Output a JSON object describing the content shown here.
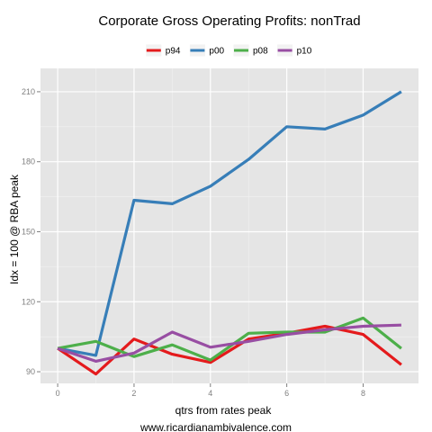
{
  "chart_data": {
    "type": "line",
    "title": "Corporate Gross Operating Profits: nonTrad",
    "xlabel": "qtrs from rates peak",
    "ylabel": "Idx = 100 @ RBA peak",
    "footer": "www.ricardianambivalence.com",
    "x": [
      0,
      1,
      2,
      3,
      4,
      5,
      6,
      7,
      8,
      9
    ],
    "xlim": [
      -0.45,
      9.45
    ],
    "ylim": [
      85,
      220
    ],
    "x_ticks": [
      0,
      2,
      4,
      6,
      8
    ],
    "y_ticks": [
      90,
      120,
      150,
      180,
      210
    ],
    "grid": true,
    "legend_position": "top",
    "series": [
      {
        "name": "p94",
        "color": "#e41a1c",
        "values": [
          100,
          89,
          104,
          97.5,
          94,
          104,
          106.5,
          109.5,
          106,
          93
        ]
      },
      {
        "name": "p00",
        "color": "#377eb8",
        "values": [
          100,
          97,
          163.5,
          162,
          169.5,
          181,
          195,
          194,
          200,
          210
        ]
      },
      {
        "name": "p08",
        "color": "#4daf4a",
        "values": [
          100,
          103,
          96.5,
          101.5,
          95,
          106.5,
          107,
          107,
          113,
          100
        ]
      },
      {
        "name": "p10",
        "color": "#984ea3",
        "values": [
          100,
          94.5,
          98,
          107,
          100.5,
          103,
          106,
          108,
          109.5,
          110
        ]
      }
    ]
  }
}
